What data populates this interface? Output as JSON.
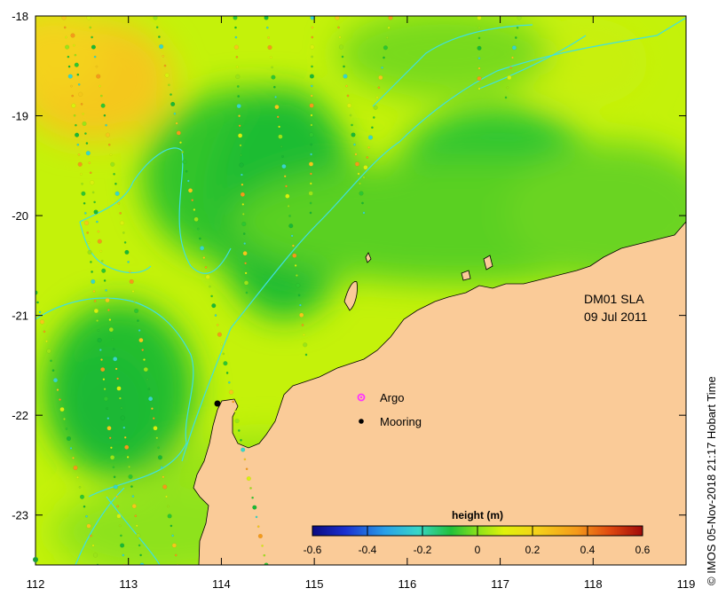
{
  "map": {
    "product": "DM01 SLA",
    "date": "09 Jul 2011",
    "credit": "© IMOS 05-Nov-2018 21:17 Hobart Time",
    "lon_range": [
      112,
      119
    ],
    "lat_range": [
      -23.5,
      -18
    ],
    "x_ticks": [
      "112",
      "113",
      "114",
      "115",
      "116",
      "117",
      "118",
      "119"
    ],
    "y_ticks": [
      "-18",
      "-19",
      "-20",
      "-21",
      "-22",
      "-23"
    ],
    "colors": {
      "land": "#facb98",
      "contour_line": "#3fe0e0",
      "ocean_high": "#f4d21a",
      "ocean_mid": "#c4f20a",
      "ocean_low": "#1fc02c"
    }
  },
  "legend": {
    "argo_label": "Argo",
    "mooring_label": "Mooring",
    "argo_color": "#ff33ff",
    "mooring_color": "#000000"
  },
  "colorbar": {
    "title": "height (m)",
    "ticks": [
      "-0.6",
      "-0.4",
      "-0.2",
      "0",
      "0.2",
      "0.4",
      "0.6"
    ],
    "range": [
      -0.6,
      0.6
    ]
  }
}
